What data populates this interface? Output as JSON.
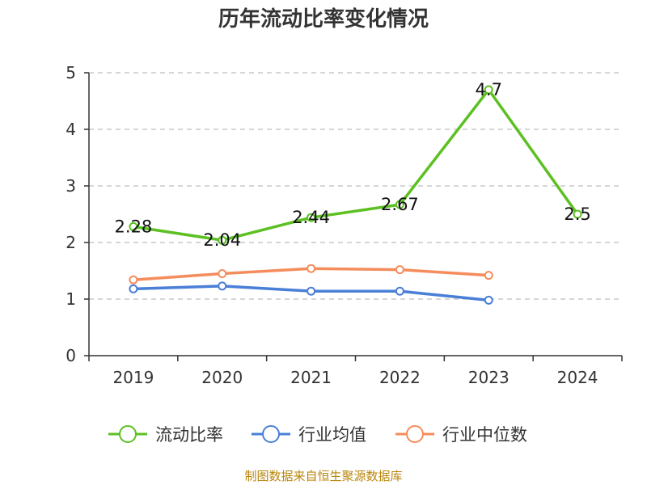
{
  "title": "历年流动比率变化情况",
  "source": "制图数据来自恒生聚源数据库",
  "chart_data": {
    "type": "line",
    "title": "历年流动比率变化情况",
    "categories": [
      "2019",
      "2020",
      "2021",
      "2022",
      "2023",
      "2024"
    ],
    "ylim": [
      0,
      5
    ],
    "yticks": [
      "0",
      "1",
      "2",
      "3",
      "4",
      "5"
    ],
    "grid": true,
    "legend_placement": "bottom",
    "series": [
      {
        "name": "流动比率",
        "color": "#5cc022",
        "values": [
          2.28,
          2.04,
          2.44,
          2.67,
          4.7,
          2.5
        ],
        "labels": [
          "2.28",
          "2.04",
          "2.44",
          "2.67",
          "4.7",
          "2.5"
        ]
      },
      {
        "name": "行业均值",
        "color": "#4a7fd8",
        "values": [
          1.18,
          1.23,
          1.14,
          1.14,
          0.98,
          null
        ]
      },
      {
        "name": "行业中位数",
        "color": "#f58c5c",
        "values": [
          1.34,
          1.45,
          1.54,
          1.52,
          1.42,
          null
        ]
      }
    ]
  }
}
